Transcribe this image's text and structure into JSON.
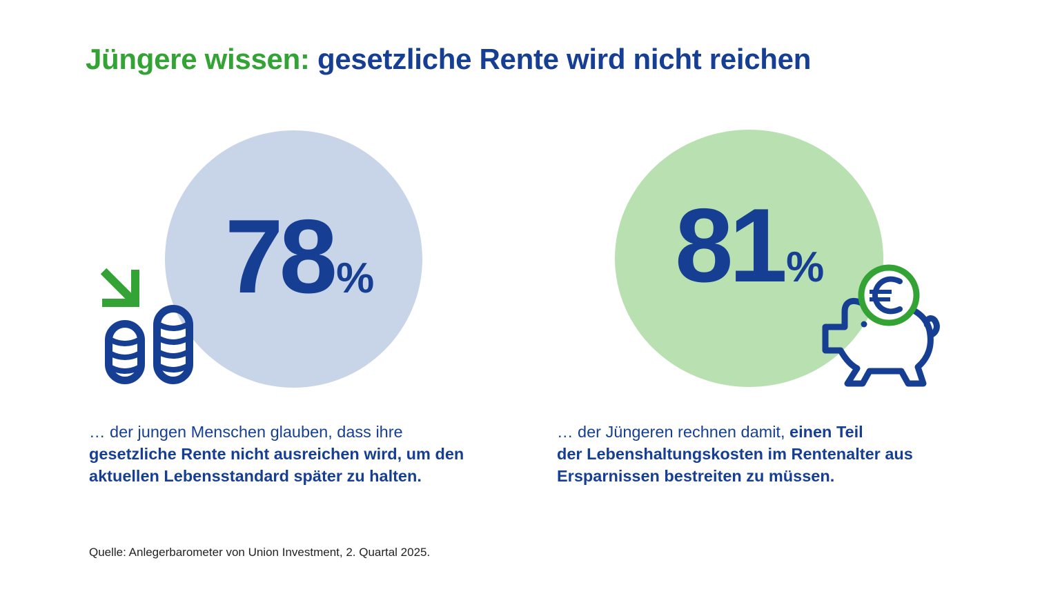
{
  "headline": {
    "highlight": "Jüngere wissen:",
    "rest": "gesetzliche Rente wird nicht reichen"
  },
  "stats": [
    {
      "value": "78",
      "unit": "%",
      "icon": "coins-down-arrow-icon",
      "circle_color": "#c8d5e8",
      "caption": {
        "line1": "… der jungen Menschen glauben, dass ihre",
        "line2": "gesetzliche Rente nicht ausreichen wird, um den",
        "line3": "aktuellen Lebensstandard später zu halten."
      }
    },
    {
      "value": "81",
      "unit": "%",
      "icon": "piggy-bank-euro-icon",
      "circle_color": "#b8e0b0",
      "caption": {
        "line1_regular": "… der Jüngeren rechnen damit,",
        "line1_bold": "einen Teil",
        "line2": "der Lebenshaltungskosten im Rentenalter aus",
        "line3": "Ersparnissen bestreiten zu müssen."
      }
    }
  ],
  "source": "Quelle: Anlegerbarometer von Union Investment, 2. Quartal 2025.",
  "colors": {
    "brand_blue": "#163f94",
    "brand_green": "#34a335",
    "background": "#ffffff"
  }
}
